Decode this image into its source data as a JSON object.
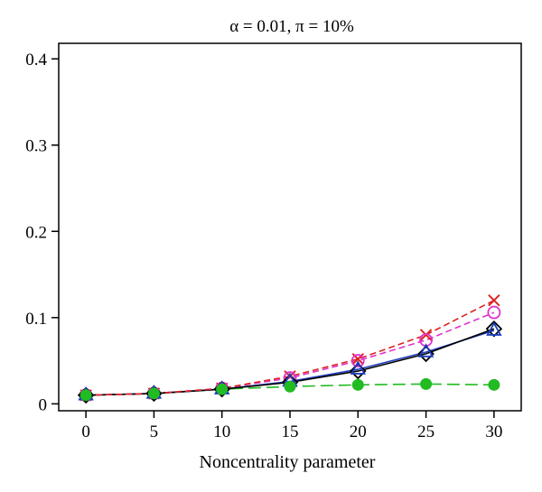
{
  "chart_data": {
    "type": "line",
    "title": "α = 0.01, π = 10%",
    "xlabel": "Noncentrality parameter",
    "ylabel": "",
    "xlim": [
      -2,
      32
    ],
    "ylim": [
      -0.008,
      0.418
    ],
    "x_ticks": [
      0,
      5,
      10,
      15,
      20,
      25,
      30
    ],
    "y_ticks": [
      0,
      0.1,
      0.2,
      0.3,
      0.4
    ],
    "y_tick_labels": [
      "0",
      "0.1",
      "0.2",
      "0.3",
      "0.4"
    ],
    "grid": false,
    "legend": "none",
    "x": [
      0,
      5,
      10,
      15,
      20,
      25,
      30
    ],
    "series": [
      {
        "marker": "circle-filled",
        "line": "long-dash",
        "color": "#22bb22",
        "values": [
          0.01,
          0.012,
          0.017,
          0.02,
          0.022,
          0.023,
          0.022
        ]
      },
      {
        "marker": "triangle",
        "line": "solid",
        "color": "#1e3fbf",
        "values": [
          0.01,
          0.012,
          0.017,
          0.026,
          0.04,
          0.06,
          0.085
        ]
      },
      {
        "marker": "diamond",
        "line": "solid",
        "color": "#000000",
        "values": [
          0.01,
          0.012,
          0.017,
          0.025,
          0.038,
          0.058,
          0.087
        ]
      },
      {
        "marker": "circle-open",
        "line": "dashed",
        "color": "#dd33cc",
        "values": [
          0.01,
          0.012,
          0.018,
          0.03,
          0.05,
          0.074,
          0.106
        ]
      },
      {
        "marker": "cross",
        "line": "dashed",
        "color": "#dd2222",
        "values": [
          0.01,
          0.012,
          0.018,
          0.032,
          0.052,
          0.08,
          0.12
        ]
      }
    ]
  }
}
